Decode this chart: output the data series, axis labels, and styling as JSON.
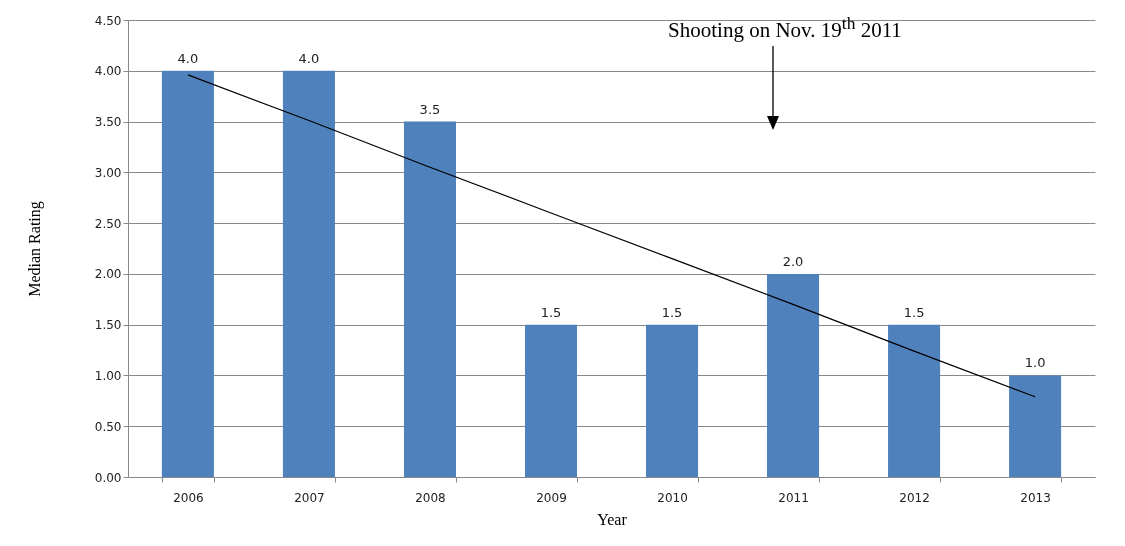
{
  "chart_data": {
    "type": "bar",
    "xlabel": "Year",
    "ylabel": "Median Rating",
    "categories": [
      "2006",
      "2007",
      "2008",
      "2009",
      "2010",
      "2011",
      "2012",
      "2013"
    ],
    "series": [
      {
        "color": "#4f81bd",
        "values": [
          4.0,
          4.0,
          3.5,
          1.5,
          1.5,
          2.0,
          1.5,
          1.0
        ],
        "value_labels": [
          "4.0",
          "4.0",
          "3.5",
          "1.5",
          "1.5",
          "2.0",
          "1.5",
          "1.0"
        ]
      },
      {
        "type": "line",
        "color": "#000000",
        "values": [
          3.96,
          3.51,
          3.05,
          2.6,
          2.15,
          1.7,
          1.24,
          0.79
        ]
      }
    ],
    "ylim": [
      0,
      4.5
    ],
    "yticks": [
      {
        "value": 0,
        "label": "0.00"
      },
      {
        "value": 0.5,
        "label": "0.50"
      },
      {
        "value": 1,
        "label": "1.00"
      },
      {
        "value": 1.5,
        "label": "1.50"
      },
      {
        "value": 2,
        "label": "2.00"
      },
      {
        "value": 2.5,
        "label": "2.50"
      },
      {
        "value": 3,
        "label": "3.00"
      },
      {
        "value": 3.5,
        "label": "3.50"
      },
      {
        "value": 4,
        "label": "4.00"
      },
      {
        "value": 4.5,
        "label": "4.50"
      }
    ],
    "grid": "y",
    "annotations": [
      "Shooting on Nov. 19$^{th}$ 2011"
    ]
  }
}
